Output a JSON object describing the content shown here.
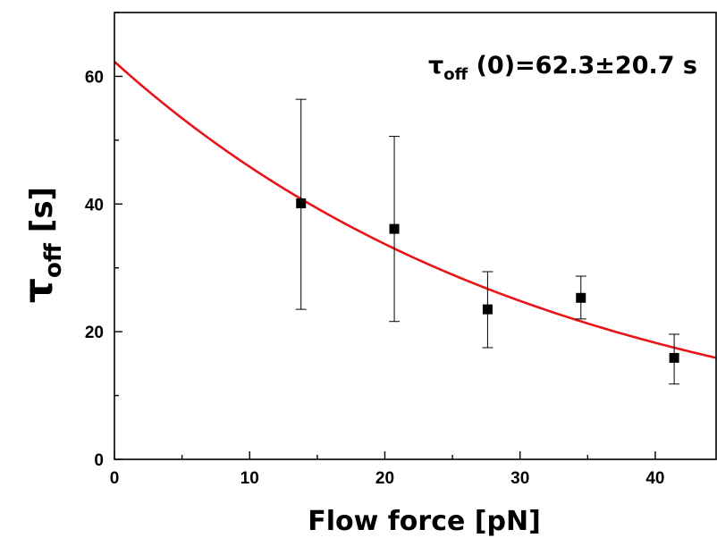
{
  "chart_data": {
    "type": "scatter",
    "xlabel": "Flow force [pN]",
    "ylabel": {
      "main": "τ",
      "sub": "off",
      "unit": " [s]"
    },
    "annotation": {
      "main": "τ",
      "sub": "off",
      "rest": " (0)=62.3±20.7 s"
    },
    "xlim": [
      0,
      44.5
    ],
    "ylim": [
      0,
      70
    ],
    "xticks": [
      0,
      10,
      20,
      30,
      40
    ],
    "yticks": [
      0,
      20,
      40,
      60
    ],
    "x_minor_step": 5,
    "y_minor_step": 10,
    "series": [
      {
        "marker": "square",
        "color": "#000000",
        "x": [
          13.8,
          20.7,
          27.6,
          34.5,
          41.4
        ],
        "y": [
          40.1,
          36.1,
          23.5,
          25.3,
          15.9
        ],
        "err_low": [
          23.5,
          21.6,
          17.5,
          22.0,
          11.8
        ],
        "err_high": [
          56.4,
          50.6,
          29.4,
          28.7,
          19.6
        ]
      }
    ],
    "fit": {
      "color": "#e8141a",
      "model": "exponential",
      "y0": 62.3,
      "decay_length": 32.6
    }
  }
}
